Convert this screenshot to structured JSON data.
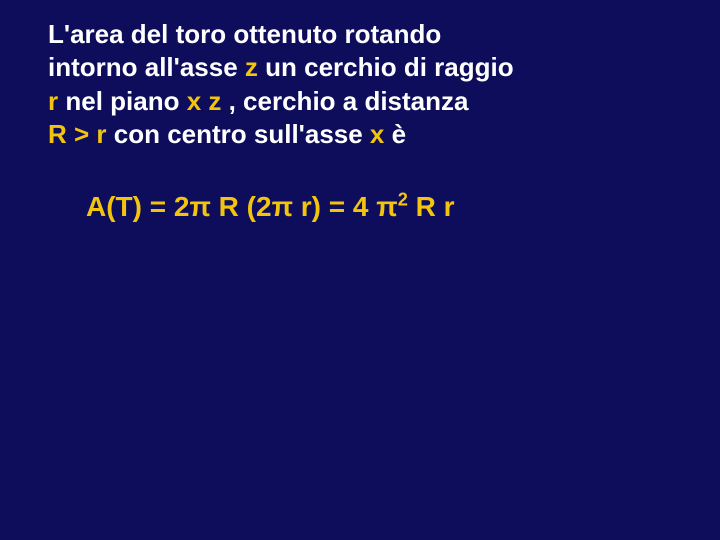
{
  "colors": {
    "background": "#0d0d5c",
    "text": "#ffffff",
    "highlight": "#f2c40e"
  },
  "typography": {
    "family": "Verdana",
    "statement_fontsize": 26,
    "formula_fontsize": 28,
    "weight": "bold"
  },
  "statement": {
    "l1a": "L'area del toro ottenuto rotando",
    "l2a": "intorno all'asse ",
    "l2b": "z",
    "l2c": " un cerchio di raggio",
    "l3a": "r",
    "l3b": " nel piano ",
    "l3c": "x z",
    "l3d": " , cerchio a distanza",
    "l4a": "R > r",
    "l4b": " con centro sull'asse ",
    "l4c": "x",
    "l4d": " è"
  },
  "formula": {
    "p1": "A(T) = 2π R (2π r) = 4 π",
    "p2": "2",
    "p3": " R r"
  }
}
